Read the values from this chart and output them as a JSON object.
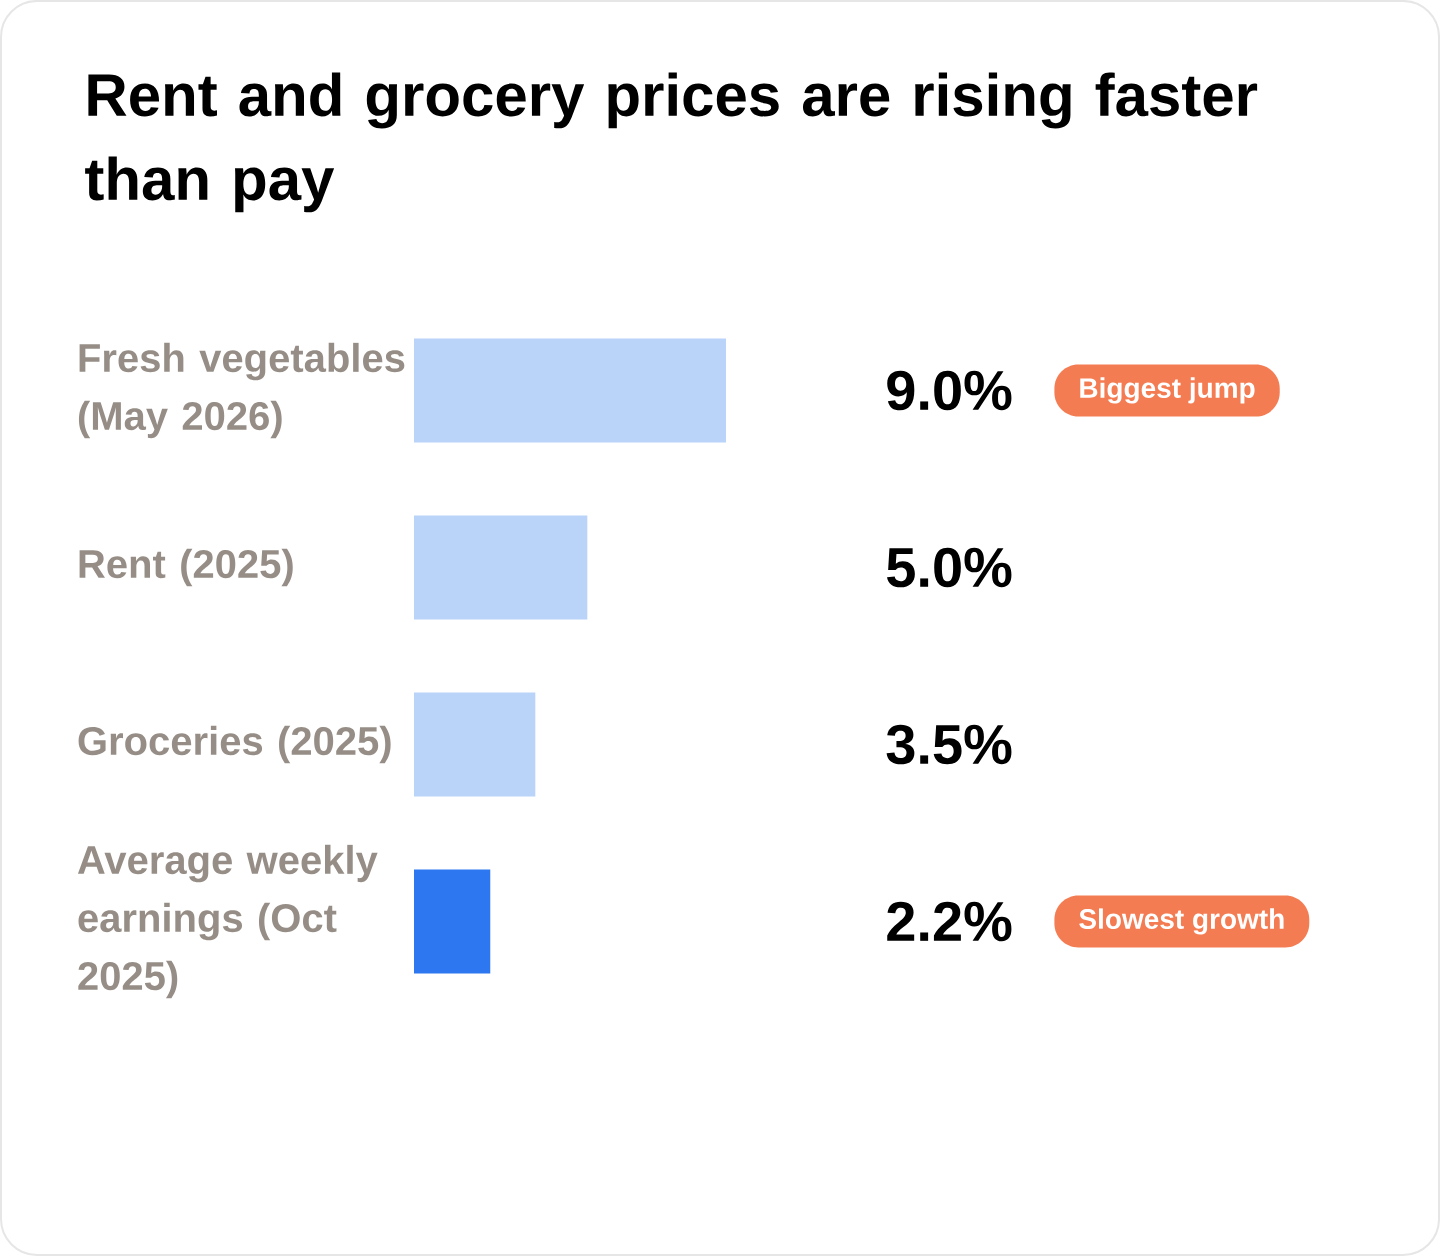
{
  "chart_data": {
    "type": "bar",
    "orientation": "horizontal",
    "title": "Rent and grocery prices are rising faster than pay",
    "categories": [
      "Fresh vegetables (May 2026)",
      "Rent (2025)",
      "Groceries (2025)",
      "Average weekly earnings (Oct 2025)"
    ],
    "values": [
      9.0,
      5.0,
      3.5,
      2.2
    ],
    "colors": [
      "#bad4f9",
      "#bad4f9",
      "#bad4f9",
      "#2d78f0"
    ],
    "value_labels": [
      "9.0%",
      "5.0%",
      "3.5%",
      "2.2%"
    ],
    "xlim": [
      0,
      9
    ],
    "tick_labels": "y",
    "annotations": [
      "Biggest jump",
      "Slowest growth"
    ]
  }
}
